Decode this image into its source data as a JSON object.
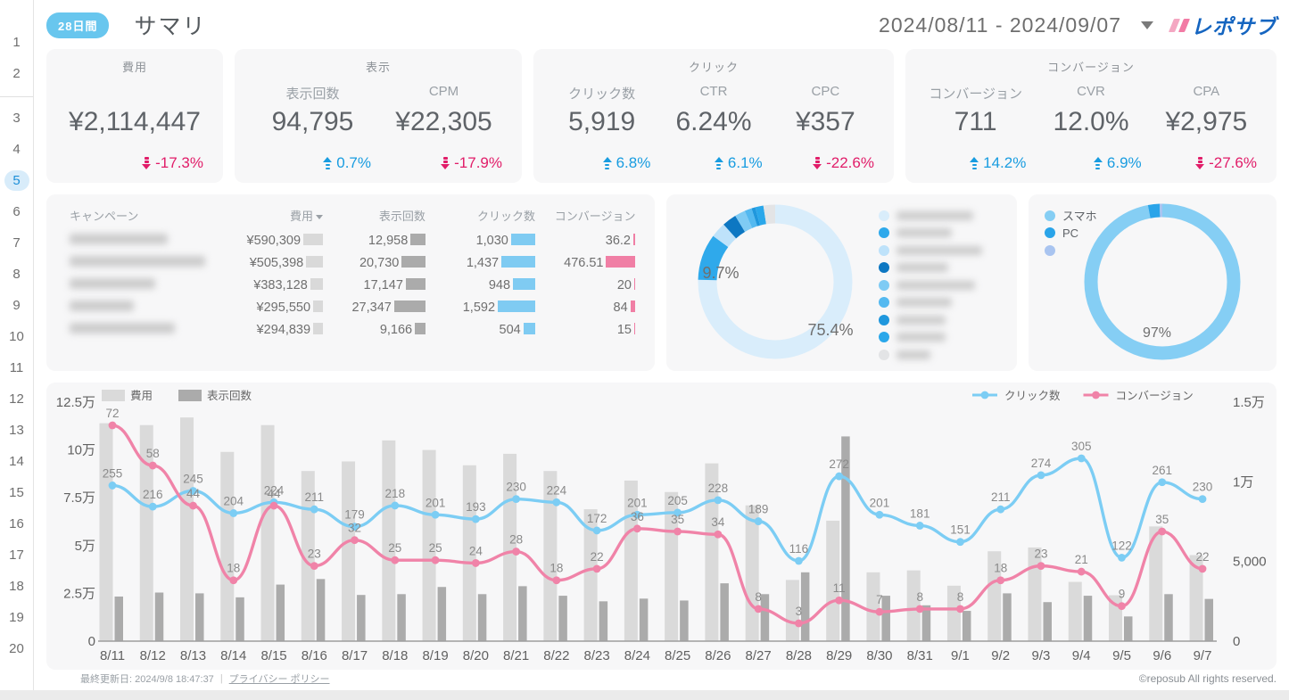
{
  "header": {
    "badge": "28日間",
    "title": "サマリ",
    "date_range": "2024/08/11 - 2024/09/07",
    "logo_text": "レポサブ"
  },
  "sidebar": {
    "pages": [
      "1",
      "2",
      "3",
      "4",
      "5",
      "6",
      "7",
      "8",
      "9",
      "10",
      "11",
      "12",
      "13",
      "14",
      "15",
      "16",
      "17",
      "18",
      "19",
      "20"
    ],
    "active_page": "5",
    "separator_after": "2"
  },
  "kpi_cards": [
    {
      "title": "費用",
      "metrics": [
        {
          "label": "",
          "value": "¥2,114,447",
          "delta": "-17.3%",
          "direction": "down"
        }
      ]
    },
    {
      "title": "表示",
      "metrics": [
        {
          "label": "表示回数",
          "value": "94,795",
          "delta": "0.7%",
          "direction": "up"
        },
        {
          "label": "CPM",
          "value": "¥22,305",
          "delta": "-17.9%",
          "direction": "down"
        }
      ]
    },
    {
      "title": "クリック",
      "metrics": [
        {
          "label": "クリック数",
          "value": "5,919",
          "delta": "6.8%",
          "direction": "up"
        },
        {
          "label": "CTR",
          "value": "6.24%",
          "delta": "6.1%",
          "direction": "up"
        },
        {
          "label": "CPC",
          "value": "¥357",
          "delta": "-22.6%",
          "direction": "down"
        }
      ]
    },
    {
      "title": "コンバージョン",
      "metrics": [
        {
          "label": "コンバージョン",
          "value": "711",
          "delta": "14.2%",
          "direction": "up"
        },
        {
          "label": "CVR",
          "value": "12.0%",
          "delta": "6.9%",
          "direction": "up"
        },
        {
          "label": "CPA",
          "value": "¥2,975",
          "delta": "-27.6%",
          "direction": "down"
        }
      ]
    }
  ],
  "campaign_table": {
    "headers": [
      "キャンペーン",
      "費用",
      "表示回数",
      "クリック数",
      "コンバージョン"
    ],
    "sorted_by": "費用",
    "rows": [
      {
        "name_redacted": true,
        "cost": "¥590,309",
        "cost_v": 590309,
        "impressions": "12,958",
        "impressions_v": 12958,
        "clicks": "1,030",
        "clicks_v": 1030,
        "conversions": "36.2",
        "conversions_v": 36.2
      },
      {
        "name_redacted": true,
        "cost": "¥505,398",
        "cost_v": 505398,
        "impressions": "20,730",
        "impressions_v": 20730,
        "clicks": "1,437",
        "clicks_v": 1437,
        "conversions": "476.51",
        "conversions_v": 476.51
      },
      {
        "name_redacted": true,
        "cost": "¥383,128",
        "cost_v": 383128,
        "impressions": "17,147",
        "impressions_v": 17147,
        "clicks": "948",
        "clicks_v": 948,
        "conversions": "20",
        "conversions_v": 20
      },
      {
        "name_redacted": true,
        "cost": "¥295,550",
        "cost_v": 295550,
        "impressions": "27,347",
        "impressions_v": 27347,
        "clicks": "1,592",
        "clicks_v": 1592,
        "conversions": "84",
        "conversions_v": 84
      },
      {
        "name_redacted": true,
        "cost": "¥294,839",
        "cost_v": 294839,
        "impressions": "9,166",
        "impressions_v": 9166,
        "clicks": "504",
        "clicks_v": 504,
        "conversions": "15",
        "conversions_v": 15
      }
    ],
    "bar_colors": {
      "cost": "#d9d9d9",
      "impressions": "#ababab",
      "clicks": "#7fcbf2",
      "conversions": "#f07fa5"
    }
  },
  "donut_campaign": {
    "shown_labels": [
      "9.7%",
      "75.4%"
    ],
    "slices": [
      {
        "pct": 75.4,
        "color": "#d9edfb",
        "label": "75.4%",
        "legend_redacted": true
      },
      {
        "pct": 9.7,
        "color": "#2fa9eb",
        "label": "9.7%",
        "legend_redacted": true
      },
      {
        "pct": 3.2,
        "color": "#bee2fa",
        "legend_redacted": true
      },
      {
        "pct": 3.0,
        "color": "#0d77c2",
        "legend_redacted": true
      },
      {
        "pct": 2.2,
        "color": "#7fcbf4",
        "legend_redacted": true
      },
      {
        "pct": 1.5,
        "color": "#54b9f0",
        "legend_redacted": true
      },
      {
        "pct": 0.8,
        "color": "#1f97dd",
        "legend_redacted": true
      },
      {
        "pct": 1.7,
        "color": "#2aa7ea",
        "legend_redacted": true
      },
      {
        "pct": 2.5,
        "color": "#e3e4e6",
        "legend_redacted": true
      }
    ]
  },
  "donut_device": {
    "shown_label": "97%",
    "slices": [
      {
        "name": "スマホ",
        "pct": 97.0,
        "color": "#85cef4",
        "label": "97%"
      },
      {
        "name": "PC",
        "pct": 2.4,
        "color": "#2aa4e9"
      },
      {
        "name": "",
        "pct": 0.6,
        "color": "#a9c4f0",
        "legend_redacted": true
      }
    ]
  },
  "chart_data": {
    "type": "combo-bar-line",
    "x": [
      "8/11",
      "8/12",
      "8/13",
      "8/14",
      "8/15",
      "8/16",
      "8/17",
      "8/18",
      "8/19",
      "8/20",
      "8/21",
      "8/22",
      "8/23",
      "8/24",
      "8/25",
      "8/26",
      "8/27",
      "8/28",
      "8/29",
      "8/30",
      "8/31",
      "9/1",
      "9/2",
      "9/3",
      "9/4",
      "9/5",
      "9/6",
      "9/7"
    ],
    "series": [
      {
        "name": "費用",
        "type": "bar",
        "axis": "left",
        "color": "#dadada",
        "values": [
          114000,
          113000,
          117000,
          99000,
          113000,
          89000,
          94000,
          105000,
          100000,
          92000,
          98000,
          89000,
          69000,
          84000,
          78000,
          93000,
          71000,
          32000,
          63000,
          36000,
          37000,
          29000,
          47000,
          49000,
          31000,
          24000,
          60000,
          45000
        ]
      },
      {
        "name": "表示回数",
        "type": "bar",
        "axis": "right",
        "color": "#ababab",
        "values": [
          2800,
          3050,
          3000,
          2750,
          3550,
          3900,
          2900,
          2950,
          3400,
          2950,
          3450,
          2850,
          2500,
          2670,
          2550,
          3630,
          2950,
          4320,
          12850,
          2850,
          2250,
          1900,
          3000,
          2450,
          2850,
          1550,
          2950,
          2650
        ]
      },
      {
        "name": "クリック数",
        "type": "line",
        "color": "#7ccdf4",
        "labels_shown": true,
        "values": [
          255,
          216,
          245,
          204,
          224,
          211,
          179,
          218,
          201,
          193,
          230,
          224,
          172,
          201,
          205,
          228,
          189,
          116,
          272,
          201,
          181,
          151,
          211,
          274,
          305,
          122,
          261,
          230
        ]
      },
      {
        "name": "コンバージョン",
        "type": "line",
        "color": "#f083a8",
        "labels_shown": true,
        "values": [
          72,
          58,
          44,
          18,
          44,
          23,
          32,
          25,
          25,
          24,
          28,
          18,
          22,
          36,
          35,
          34,
          8,
          3,
          11,
          7,
          8,
          8,
          18,
          23,
          21,
          9,
          35,
          22
        ]
      }
    ],
    "left_axis": {
      "ticks": [
        "0",
        "2.5万",
        "5万",
        "7.5万",
        "10万",
        "12.5万"
      ],
      "max": 125000
    },
    "right_axis": {
      "ticks": [
        "0",
        "5,000",
        "1万",
        "1.5万"
      ],
      "max": 15000
    },
    "grid": false,
    "legend_left": [
      "費用",
      "表示回数"
    ],
    "legend_right": [
      "クリック数",
      "コンバージョン"
    ]
  },
  "footer": {
    "last_updated": "最終更新日: 2024/9/8 18:47:37",
    "privacy_link": "プライバシー ポリシー",
    "copyright": "©reposub All rights reserved."
  }
}
